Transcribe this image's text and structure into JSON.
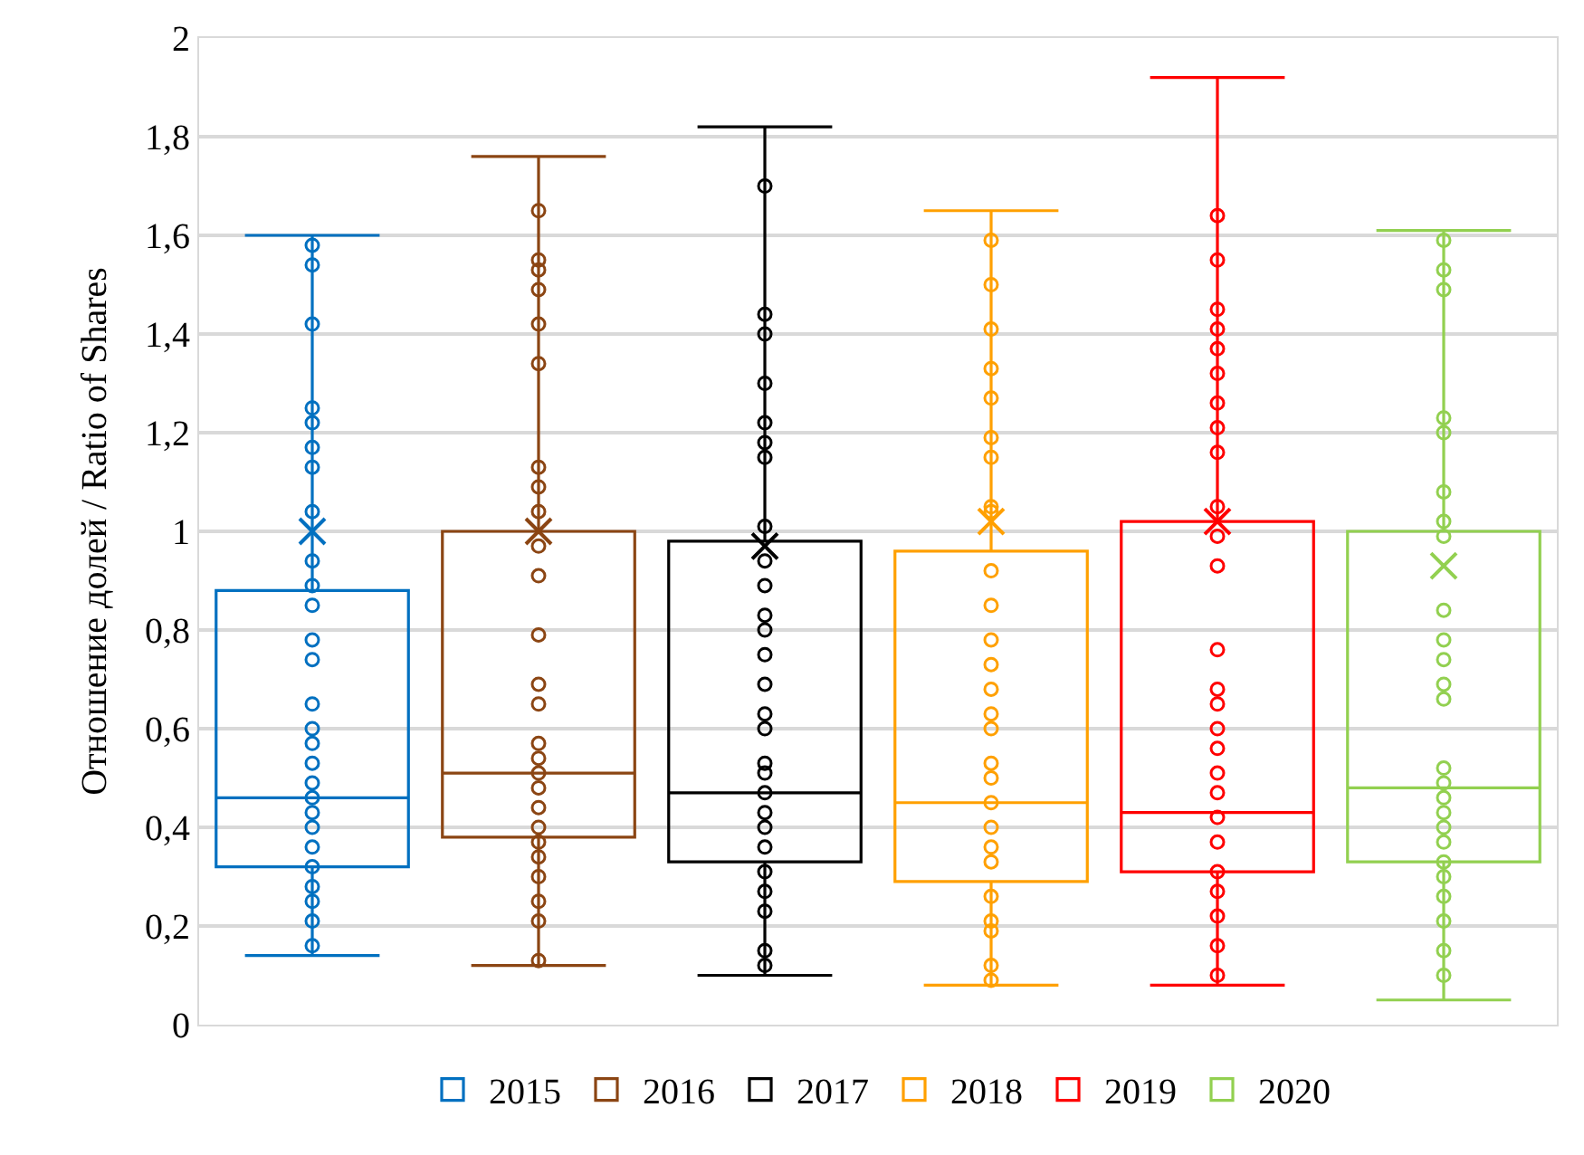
{
  "chart_data": {
    "type": "box",
    "ylabel": "Отношение долей / Ratio of Shares",
    "categories": [
      null,
      null,
      null,
      null,
      null,
      null
    ],
    "ylim": [
      0,
      2
    ],
    "yticks": [
      0,
      {
        "value": 0.2,
        "label": "0,2"
      },
      {
        "value": 0.4,
        "label": "0,4"
      },
      {
        "value": 0.6,
        "label": "0,6"
      },
      {
        "value": 0.8,
        "label": "0,8"
      },
      1,
      {
        "value": 1.2,
        "label": "1,2"
      },
      {
        "value": 1.4,
        "label": "1,4"
      },
      {
        "value": 1.6,
        "label": "1,6"
      },
      {
        "value": 1.8,
        "label": "1,8"
      },
      2
    ],
    "grid": "y",
    "legend": "bottom",
    "marker": "circle",
    "tick_labels": "y",
    "series": [
      {
        "name": "2015",
        "color": "#0070c0",
        "boxes": [
          {
            "low": 0.14,
            "q1": 0.32,
            "median": 0.46,
            "q3": 0.88,
            "high": 1.6,
            "mean": 1.0,
            "outliers": [
              1.58,
              1.54,
              1.42,
              1.25,
              1.22,
              1.17,
              1.13,
              1.04,
              0.94,
              0.89,
              0.85,
              0.78,
              0.74,
              0.65,
              0.6,
              0.57,
              0.53,
              0.49,
              0.46,
              0.43,
              0.4,
              0.36,
              0.32,
              0.28,
              0.25,
              0.21,
              0.16
            ]
          },
          null,
          null,
          null,
          null,
          null
        ]
      },
      {
        "name": "2016",
        "color": "#8b4513",
        "boxes": [
          null,
          {
            "low": 0.12,
            "q1": 0.38,
            "median": 0.51,
            "q3": 1.0,
            "high": 1.76,
            "mean": 1.0,
            "outliers": [
              1.65,
              1.55,
              1.53,
              1.49,
              1.42,
              1.34,
              1.13,
              1.09,
              1.04,
              0.97,
              0.91,
              0.79,
              0.69,
              0.65,
              0.57,
              0.54,
              0.51,
              0.48,
              0.44,
              0.4,
              0.37,
              0.34,
              0.3,
              0.25,
              0.21,
              0.13
            ]
          },
          null,
          null,
          null,
          null
        ]
      },
      {
        "name": "2017",
        "color": "#000000",
        "boxes": [
          null,
          null,
          {
            "low": 0.1,
            "q1": 0.33,
            "median": 0.47,
            "q3": 0.98,
            "high": 1.82,
            "mean": 0.97,
            "outliers": [
              1.7,
              1.44,
              1.4,
              1.3,
              1.22,
              1.18,
              1.15,
              1.01,
              0.94,
              0.89,
              0.83,
              0.8,
              0.75,
              0.69,
              0.63,
              0.6,
              0.53,
              0.51,
              0.47,
              0.43,
              0.4,
              0.36,
              0.31,
              0.27,
              0.23,
              0.15,
              0.12
            ]
          },
          null,
          null,
          null
        ]
      },
      {
        "name": "2018",
        "color": "#ffa000",
        "boxes": [
          null,
          null,
          null,
          {
            "low": 0.08,
            "q1": 0.29,
            "median": 0.45,
            "q3": 0.96,
            "high": 1.65,
            "mean": 1.02,
            "outliers": [
              1.59,
              1.5,
              1.41,
              1.33,
              1.27,
              1.19,
              1.15,
              1.05,
              1.04,
              0.92,
              0.85,
              0.78,
              0.73,
              0.68,
              0.63,
              0.6,
              0.53,
              0.5,
              0.45,
              0.4,
              0.36,
              0.33,
              0.26,
              0.21,
              0.19,
              0.12,
              0.09
            ]
          },
          null,
          null
        ]
      },
      {
        "name": "2019",
        "color": "#ff0000",
        "boxes": [
          null,
          null,
          null,
          null,
          {
            "low": 0.08,
            "q1": 0.31,
            "median": 0.43,
            "q3": 1.02,
            "high": 1.92,
            "mean": 1.02,
            "outliers": [
              1.64,
              1.55,
              1.45,
              1.41,
              1.37,
              1.32,
              1.26,
              1.21,
              1.16,
              1.05,
              0.99,
              0.93,
              0.76,
              0.68,
              0.65,
              0.6,
              0.56,
              0.51,
              0.47,
              0.42,
              0.37,
              0.31,
              0.27,
              0.22,
              0.16,
              0.1
            ]
          },
          null
        ]
      },
      {
        "name": "2020",
        "color": "#92d050",
        "boxes": [
          null,
          null,
          null,
          null,
          null,
          {
            "low": 0.05,
            "q1": 0.33,
            "median": 0.48,
            "q3": 1.0,
            "high": 1.61,
            "mean": 0.93,
            "outliers": [
              1.59,
              1.53,
              1.49,
              1.23,
              1.2,
              1.08,
              1.02,
              0.99,
              0.84,
              0.78,
              0.74,
              0.69,
              0.66,
              0.52,
              0.49,
              0.46,
              0.43,
              0.4,
              0.37,
              0.33,
              0.3,
              0.26,
              0.21,
              0.15,
              0.1
            ]
          }
        ]
      }
    ]
  }
}
